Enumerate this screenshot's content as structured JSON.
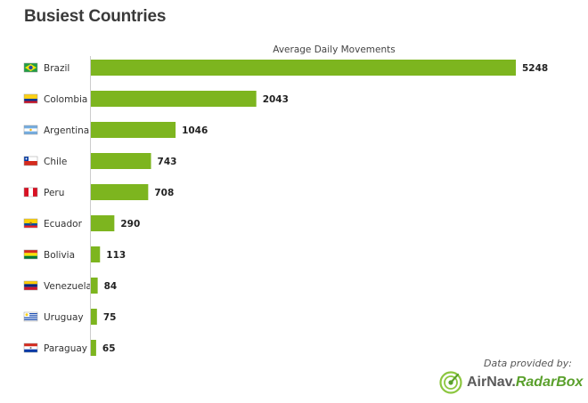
{
  "page_title": "Busiest Countries",
  "chart_data": {
    "type": "bar",
    "orientation": "horizontal",
    "title": "Average Daily Movements",
    "categories": [
      "Brazil",
      "Colombia",
      "Argentina",
      "Chile",
      "Peru",
      "Ecuador",
      "Bolivia",
      "Venezuela",
      "Uruguay",
      "Paraguay"
    ],
    "values": [
      5248,
      2043,
      1046,
      743,
      708,
      290,
      113,
      84,
      75,
      65
    ],
    "xlim": [
      0,
      5248
    ],
    "bar_color": "#7db51f",
    "axis_color": "#cccccc",
    "grid": false,
    "legend": "none",
    "data_labels": true,
    "category_icons": [
      "flag-brazil-icon",
      "flag-colombia-icon",
      "flag-argentina-icon",
      "flag-chile-icon",
      "flag-peru-icon",
      "flag-ecuador-icon",
      "flag-bolivia-icon",
      "flag-venezuela-icon",
      "flag-uruguay-icon",
      "flag-paraguay-icon"
    ]
  },
  "credit": {
    "text": "Data provided by:",
    "brand_part1": "AirNav.",
    "brand_part2": "RadarBox",
    "brand_icon": "radarbox-logo-icon",
    "brand_color": "#5aa02c"
  }
}
